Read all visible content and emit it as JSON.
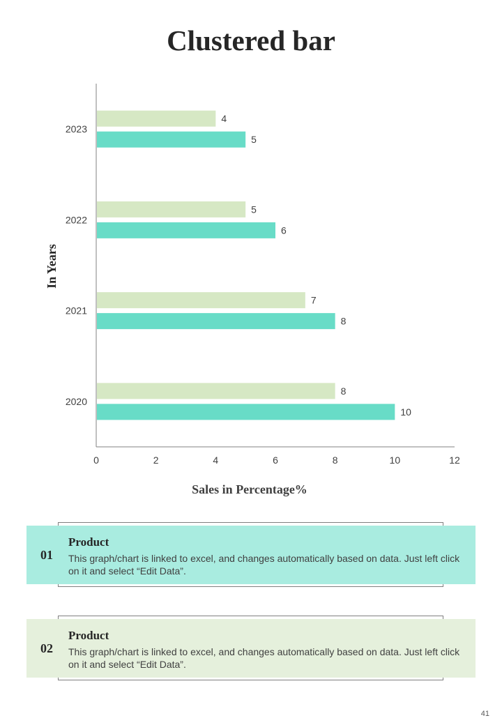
{
  "page": {
    "title": "Clustered bar",
    "page_number": "41"
  },
  "colors": {
    "series_light": "#d6e8c4",
    "series_teal": "#68dcc7",
    "card1_bg": "#a9ece0",
    "card2_bg": "#e5f0dc",
    "axis": "#808080"
  },
  "chart_data": {
    "type": "bar",
    "orientation": "horizontal",
    "title": "",
    "xlabel": "Sales in Percentage%",
    "ylabel": "In Years",
    "categories": [
      "2023",
      "2022",
      "2021",
      "2020"
    ],
    "series": [
      {
        "values": [
          4,
          5,
          7,
          8
        ]
      },
      {
        "values": [
          5,
          6,
          8,
          10
        ]
      }
    ],
    "xlim": [
      0,
      12
    ],
    "xticks": [
      0,
      2,
      4,
      6,
      8,
      10,
      12
    ],
    "grid": false,
    "legend": "none",
    "data_labels": true
  },
  "cards": [
    {
      "number": "01",
      "title": "Product",
      "text": "This graph/chart is linked to excel, and changes automatically based on data. Just left click on it and select “Edit Data”."
    },
    {
      "number": "02",
      "title": "Product",
      "text": "This graph/chart is linked to excel, and changes automatically based on data. Just left click on it and select “Edit Data”."
    }
  ]
}
